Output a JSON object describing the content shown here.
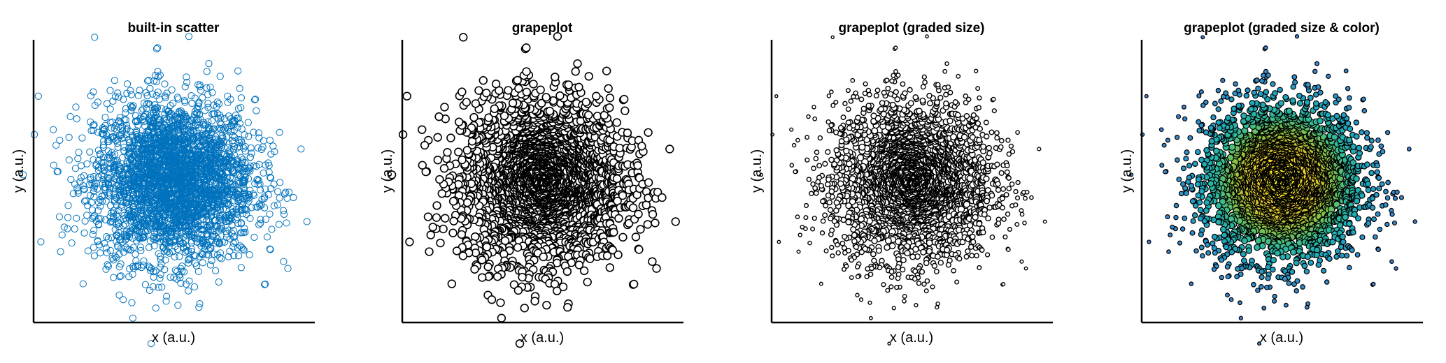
{
  "figure": {
    "panels": [
      {
        "title": "built-in scatter",
        "xlabel": "x (a.u.)",
        "ylabel": "y (a.u.)"
      },
      {
        "title": "grapeplot",
        "xlabel": "x (a.u.)",
        "ylabel": "y (a.u.)"
      },
      {
        "title": "grapeplot (graded size)",
        "xlabel": "x (a.u.)",
        "ylabel": "y (a.u.)"
      },
      {
        "title": "grapeplot (graded size & color)",
        "xlabel": "x (a.u.)",
        "ylabel": "y (a.u.)"
      }
    ]
  },
  "chart_data": [
    {
      "type": "scatter",
      "title": "built-in scatter",
      "xlabel": "x (a.u.)",
      "ylabel": "y (a.u.)",
      "distribution": "2D standard normal cloud centered at (0, 0)",
      "approx_points": 3000,
      "xlim": [
        -3.5,
        3.5
      ],
      "ylim": [
        -3.5,
        3.5
      ],
      "ticks": "none",
      "grid": false,
      "marker": "open circle",
      "marker_color": "#0072BD"
    },
    {
      "type": "scatter",
      "title": "grapeplot",
      "xlabel": "x (a.u.)",
      "ylabel": "y (a.u.)",
      "distribution": "2D standard normal cloud centered at (0, 0)",
      "xlim": [
        -3.5,
        3.5
      ],
      "ylim": [
        -3.5,
        3.5
      ],
      "ticks": "none",
      "grid": false,
      "marker": "merged white circles with black outline",
      "marker_color": "#ffffff",
      "edge_color": "#000000"
    },
    {
      "type": "scatter",
      "title": "grapeplot (graded size)",
      "xlabel": "x (a.u.)",
      "ylabel": "y (a.u.)",
      "distribution": "2D standard normal cloud centered at (0, 0)",
      "xlim": [
        -3.5,
        3.5
      ],
      "ylim": [
        -3.5,
        3.5
      ],
      "ticks": "none",
      "grid": false,
      "marker": "merged white circles with black outline, size graded by density",
      "marker_color": "#ffffff",
      "edge_color": "#000000"
    },
    {
      "type": "scatter",
      "title": "grapeplot (graded size & color)",
      "xlabel": "x (a.u.)",
      "ylabel": "y (a.u.)",
      "distribution": "2D standard normal cloud centered at (0, 0)",
      "xlim": [
        -3.5,
        3.5
      ],
      "ylim": [
        -3.5,
        3.5
      ],
      "ticks": "none",
      "grid": false,
      "marker": "merged circles with black outline, size and color graded by density",
      "colormap": [
        "#3E7FD0",
        "#1BA5C0",
        "#2DBA9A",
        "#7FC24A",
        "#C6C02C",
        "#F5D12A",
        "#FBF51A"
      ],
      "edge_color": "#000000"
    }
  ]
}
